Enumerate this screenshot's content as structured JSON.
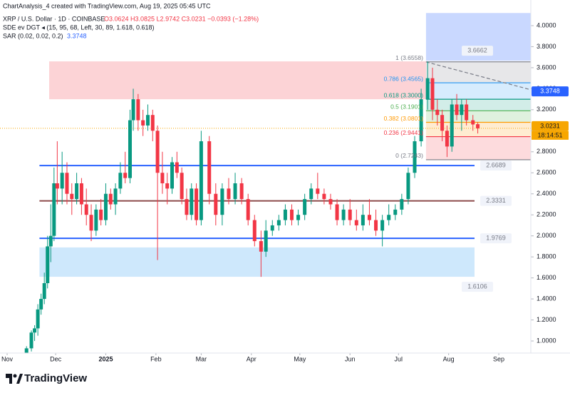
{
  "header": {
    "credit": "ChartAnalysis_4 created with TradingView.com, Aug 19, 2025 05:45 UTC",
    "symbol": "XRP / U.S. Dollar · 1D · COINBASE",
    "ohlc": "O3.0624 H3.0825 L2.9742 C3.0231 −0.0393 (−1.28%)",
    "indicator1": "SDE ev DGT ◂ (15, 95, 68, Left, 30, 89, 1.618, 0.618)",
    "indicator2": "SAR (0.02, 0.02, 0.2)"
  },
  "chart_data": {
    "type": "candlestick",
    "up_color": "#089981",
    "down_color": "#f23645",
    "xlim": [
      -4.4,
      323.8
    ],
    "ylim": [
      0.885,
      4.149
    ],
    "xticks": [
      {
        "value": 0,
        "label": "Nov"
      },
      {
        "value": 30,
        "label": "Dec"
      },
      {
        "value": 61,
        "label": "2025"
      },
      {
        "value": 92,
        "label": "Feb"
      },
      {
        "value": 120,
        "label": "Mar"
      },
      {
        "value": 151,
        "label": "Apr"
      },
      {
        "value": 181,
        "label": "May"
      },
      {
        "value": 212,
        "label": "Jun"
      },
      {
        "value": 242,
        "label": "Jul"
      },
      {
        "value": 273,
        "label": "Aug"
      },
      {
        "value": 304,
        "label": "Sep"
      }
    ],
    "yticks": [
      {
        "value": 1,
        "label": "1.0000"
      },
      {
        "value": 1.2,
        "label": "1.2000"
      },
      {
        "value": 1.4,
        "label": "1.4000"
      },
      {
        "value": 1.6,
        "label": "1.6000"
      },
      {
        "value": 1.8,
        "label": "1.8000"
      },
      {
        "value": 2,
        "label": "2.0000"
      },
      {
        "value": 2.2,
        "label": "2.2000"
      },
      {
        "value": 2.4,
        "label": "2.4000"
      },
      {
        "value": 2.6,
        "label": "2.6000"
      },
      {
        "value": 2.8,
        "label": "2.8000"
      },
      {
        "value": 3,
        "label": "3.0000"
      },
      {
        "value": 3.2,
        "label": "3.2000"
      },
      {
        "value": 3.4,
        "label": "3.4000"
      },
      {
        "value": 3.6,
        "label": "3.6000"
      },
      {
        "value": 3.8,
        "label": "3.8000"
      },
      {
        "value": 4,
        "label": "4.0000"
      }
    ],
    "x": [
      12,
      15,
      17,
      19,
      21,
      23,
      25,
      27,
      29,
      31,
      34,
      37,
      40,
      43,
      46,
      49,
      52,
      55,
      58,
      61,
      64,
      67,
      70,
      73,
      76,
      78,
      81,
      84,
      87,
      90,
      93,
      96,
      99,
      102,
      105,
      108,
      111,
      114,
      117,
      120,
      125,
      129,
      133,
      137,
      141,
      145,
      149,
      153,
      157,
      160,
      164,
      168,
      172,
      176,
      180,
      184,
      188,
      192,
      196,
      200,
      204,
      208,
      212,
      216,
      220,
      224,
      228,
      232,
      236,
      240,
      244,
      248,
      252,
      256,
      260,
      263,
      266,
      269,
      272,
      275,
      278,
      281,
      284,
      288,
      291
    ],
    "open": [
      0.82,
      0.93,
      1.08,
      1.12,
      1.3,
      1.4,
      1.55,
      1.9,
      2.0,
      2.5,
      2.45,
      2.6,
      2.4,
      2.35,
      2.5,
      2.3,
      2.2,
      2.05,
      2.25,
      2.15,
      2.4,
      2.3,
      2.45,
      2.6,
      2.55,
      3.1,
      3.3,
      3.1,
      3.05,
      3.15,
      3.0,
      2.6,
      2.5,
      2.45,
      2.7,
      2.6,
      2.35,
      2.2,
      2.45,
      2.15,
      2.9,
      2.4,
      2.2,
      2.45,
      2.35,
      2.5,
      2.35,
      2.15,
      1.95,
      1.85,
      2.05,
      2.1,
      2.15,
      2.25,
      2.15,
      2.2,
      2.35,
      2.45,
      2.4,
      2.35,
      2.3,
      2.15,
      2.25,
      2.15,
      2.1,
      2.2,
      2.15,
      2.05,
      2.15,
      2.2,
      2.25,
      2.35,
      2.6,
      2.9,
      3.3,
      3.5,
      3.2,
      3.15,
      3.0,
      2.85,
      3.25,
      3.15,
      3.25,
      3.1,
      3.0624
    ],
    "high": [
      0.95,
      1.1,
      1.15,
      1.35,
      1.45,
      1.65,
      2.0,
      2.3,
      2.65,
      2.9,
      2.8,
      2.7,
      2.5,
      2.6,
      2.55,
      2.45,
      2.3,
      2.3,
      2.35,
      2.5,
      2.45,
      2.5,
      2.7,
      2.8,
      3.2,
      3.4,
      3.35,
      3.2,
      3.25,
      3.2,
      3.05,
      2.8,
      2.6,
      2.75,
      2.8,
      2.65,
      2.45,
      2.5,
      2.5,
      3.0,
      2.95,
      2.5,
      2.5,
      2.55,
      2.6,
      2.55,
      2.4,
      2.2,
      2.05,
      2.15,
      2.15,
      2.2,
      2.3,
      2.3,
      2.25,
      2.4,
      2.5,
      2.6,
      2.45,
      2.4,
      2.35,
      2.3,
      2.35,
      2.25,
      2.3,
      2.35,
      2.25,
      2.2,
      2.3,
      2.3,
      2.4,
      2.65,
      2.95,
      3.4,
      3.66,
      3.6,
      3.3,
      3.2,
      3.05,
      3.3,
      3.35,
      3.3,
      3.3,
      3.15,
      3.0825
    ],
    "low": [
      0.8,
      0.9,
      1.0,
      1.05,
      1.25,
      1.35,
      1.5,
      1.75,
      1.95,
      2.3,
      2.3,
      2.3,
      2.2,
      2.3,
      2.2,
      2.1,
      1.95,
      2.0,
      2.1,
      2.1,
      2.25,
      2.2,
      2.4,
      2.5,
      2.5,
      3.0,
      3.0,
      2.95,
      3.0,
      2.9,
      1.77,
      2.4,
      2.3,
      2.4,
      2.55,
      2.3,
      2.15,
      2.15,
      2.1,
      2.1,
      2.3,
      2.1,
      2.1,
      2.3,
      2.3,
      2.3,
      2.1,
      1.9,
      1.61,
      1.8,
      2.0,
      2.05,
      2.1,
      2.1,
      2.1,
      2.15,
      2.3,
      2.35,
      2.3,
      2.25,
      2.1,
      2.1,
      2.1,
      2.05,
      2.05,
      2.1,
      2.0,
      1.9,
      2.1,
      2.15,
      2.2,
      2.3,
      2.55,
      2.85,
      3.2,
      3.1,
      3.05,
      2.9,
      2.75,
      2.8,
      3.1,
      3.0,
      3.05,
      3.0,
      2.9742
    ],
    "close": [
      0.93,
      1.08,
      1.12,
      1.3,
      1.4,
      1.55,
      1.9,
      2.0,
      2.5,
      2.45,
      2.6,
      2.4,
      2.35,
      2.5,
      2.3,
      2.2,
      2.05,
      2.25,
      2.15,
      2.4,
      2.3,
      2.45,
      2.6,
      2.55,
      3.1,
      3.3,
      3.1,
      3.05,
      3.15,
      3.0,
      2.6,
      2.5,
      2.45,
      2.7,
      2.6,
      2.35,
      2.2,
      2.45,
      2.15,
      2.9,
      2.4,
      2.2,
      2.45,
      2.35,
      2.5,
      2.35,
      2.15,
      1.95,
      1.85,
      2.05,
      2.1,
      2.15,
      2.25,
      2.15,
      2.2,
      2.35,
      2.45,
      2.4,
      2.35,
      2.3,
      2.15,
      2.25,
      2.15,
      2.1,
      2.2,
      2.15,
      2.05,
      2.15,
      2.2,
      2.25,
      2.35,
      2.6,
      2.9,
      3.3,
      3.5,
      3.2,
      3.15,
      3.0,
      2.85,
      3.25,
      3.15,
      3.25,
      3.1,
      3.06,
      3.0231
    ],
    "zones": [
      {
        "low": 3.3,
        "high": 3.66,
        "x0": 26,
        "x1": 259,
        "color": "rgba(242,54,69,0.22)",
        "edge_label": false
      },
      {
        "low": 1.6106,
        "high": 1.89,
        "x0": 20,
        "x1": 289,
        "color": "rgba(33,150,243,0.22)",
        "edge_label": true
      },
      {
        "low": 3.6662,
        "high": 4.12,
        "x0": 259,
        "x1": 323.8,
        "color": "rgba(41,98,255,0.25)",
        "edge_label": true
      }
    ],
    "levels": [
      {
        "value": 2.6689,
        "color": "#2962ff",
        "x0": 20,
        "x1": 289
      },
      {
        "value": 2.3331,
        "color": "#8d4b4b",
        "x0": 20,
        "x1": 289
      },
      {
        "value": 1.9769,
        "color": "#2962ff",
        "x0": 20,
        "x1": 289
      }
    ],
    "fib": {
      "x0": 259,
      "x1": 323.8,
      "levels": [
        {
          "value": 3.6558,
          "label": "1 (3.6558)",
          "color": "#787b86"
        },
        {
          "value": 3.4565,
          "label": "0.786 (3.4565)",
          "color": "#2196f3"
        },
        {
          "value": 3.3,
          "label": "0.618 (3.3000)",
          "color": "#089981"
        },
        {
          "value": 3.1901,
          "label": "0.5 (3.1901)",
          "color": "#4caf50"
        },
        {
          "value": 3.0801,
          "label": "0.382 (3.0801)",
          "color": "#ff9800"
        },
        {
          "value": 2.9441,
          "label": "0.236 (2.9441)",
          "color": "#f23645"
        },
        {
          "value": 2.7243,
          "label": "0 (2.7243)",
          "color": "#787b86"
        }
      ]
    },
    "trendline": {
      "x": [
        259,
        323.8
      ],
      "y": [
        3.655,
        3.39
      ]
    },
    "sar": 3.3748,
    "last": {
      "value": 3.0231,
      "countdown": "18:14:51"
    }
  },
  "footer": {
    "brand": "TradingView"
  }
}
